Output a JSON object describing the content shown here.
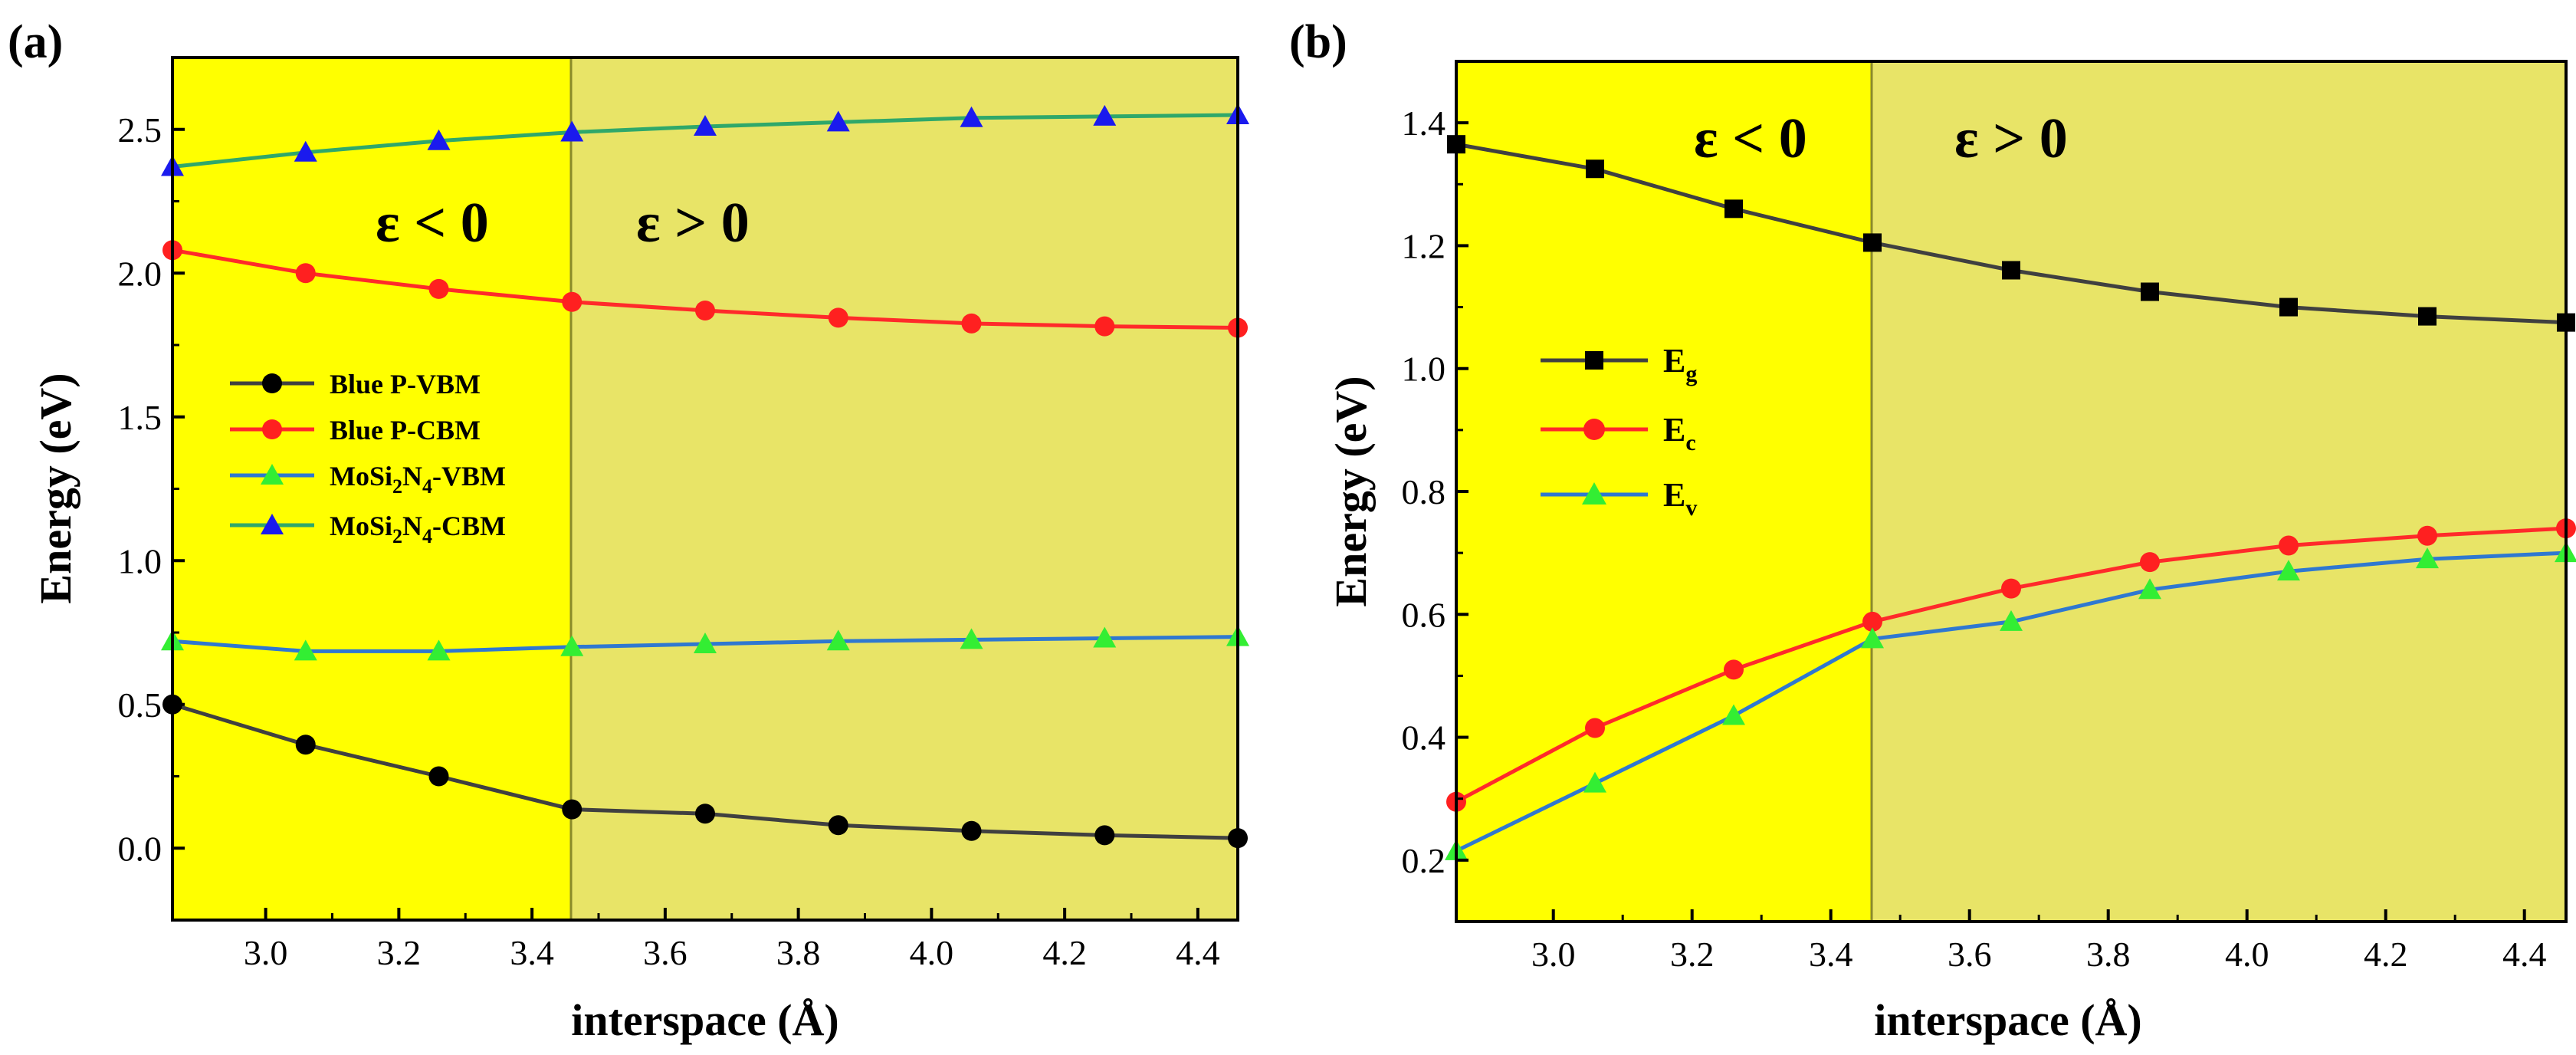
{
  "chart_data": [
    {
      "type": "line",
      "panel_label": "(a)",
      "xlabel": "interspace (Å)",
      "ylabel": "Energy (eV)",
      "xlim": [
        2.86,
        4.46
      ],
      "ylim": [
        -0.25,
        2.75
      ],
      "xticks": [
        3.0,
        3.2,
        3.4,
        3.6,
        3.8,
        4.0,
        4.2,
        4.4
      ],
      "xtick_labels": [
        "3.0",
        "3.2",
        "3.4",
        "3.6",
        "3.8",
        "4.0",
        "4.2",
        "4.4"
      ],
      "yticks": [
        0.0,
        0.5,
        1.0,
        1.5,
        2.0,
        2.5
      ],
      "ytick_labels": [
        "0.0",
        "0.5",
        "1.0",
        "1.5",
        "2.0",
        "2.5"
      ],
      "divider_x": 3.46,
      "region_left": {
        "label": "ε < 0",
        "color": "#ffff00"
      },
      "region_right": {
        "label": "ε > 0",
        "color": "#e8e467"
      },
      "x": [
        2.86,
        3.06,
        3.26,
        3.46,
        3.66,
        3.86,
        4.06,
        4.26,
        4.46
      ],
      "series": [
        {
          "name": "Blue P-VBM",
          "label_main": "Blue P-VBM",
          "label_sub": "",
          "label_tail": "",
          "label_sub2": "",
          "label_tail2": "",
          "line_color": "#404040",
          "marker": "circle",
          "marker_color": "#000000",
          "values": [
            0.5,
            0.36,
            0.25,
            0.135,
            0.12,
            0.08,
            0.06,
            0.045,
            0.035
          ]
        },
        {
          "name": "Blue P-CBM",
          "label_main": "Blue P-CBM",
          "label_sub": "",
          "label_tail": "",
          "label_sub2": "",
          "label_tail2": "",
          "line_color": "#ff2a2a",
          "marker": "circle",
          "marker_color": "#ff2020",
          "values": [
            2.08,
            2.0,
            1.945,
            1.9,
            1.87,
            1.845,
            1.825,
            1.815,
            1.81
          ]
        },
        {
          "name": "MoSi2N4-VBM",
          "label_main": "MoSi",
          "label_sub": "2",
          "label_tail": "N",
          "label_sub2": "4",
          "label_tail2": "-VBM",
          "line_color": "#2f78d0",
          "marker": "triangle",
          "marker_color": "#33ee33",
          "values": [
            0.72,
            0.685,
            0.685,
            0.7,
            0.71,
            0.72,
            0.725,
            0.73,
            0.735
          ]
        },
        {
          "name": "MoSi2N4-CBM",
          "label_main": "MoSi",
          "label_sub": "2",
          "label_tail": "N",
          "label_sub2": "4",
          "label_tail2": "-CBM",
          "line_color": "#2fa86a",
          "marker": "triangle",
          "marker_color": "#1a1aee",
          "values": [
            2.37,
            2.42,
            2.46,
            2.49,
            2.51,
            2.525,
            2.54,
            2.545,
            2.55
          ]
        }
      ]
    },
    {
      "type": "line",
      "panel_label": "(b)",
      "xlabel": "interspace (Å)",
      "ylabel": "Energy (eV)",
      "xlim": [
        2.86,
        4.46
      ],
      "ylim": [
        0.1,
        1.5
      ],
      "xticks": [
        3.0,
        3.2,
        3.4,
        3.6,
        3.8,
        4.0,
        4.2,
        4.4
      ],
      "xtick_labels": [
        "3.0",
        "3.2",
        "3.4",
        "3.6",
        "3.8",
        "4.0",
        "4.2",
        "4.4"
      ],
      "yticks": [
        0.2,
        0.4,
        0.6,
        0.8,
        1.0,
        1.2,
        1.4
      ],
      "ytick_labels": [
        "0.2",
        "0.4",
        "0.6",
        "0.8",
        "1.0",
        "1.2",
        "1.4"
      ],
      "divider_x": 3.46,
      "region_left": {
        "label": "ε < 0",
        "color": "#ffff00"
      },
      "region_right": {
        "label": "ε > 0",
        "color": "#e8e467"
      },
      "x": [
        2.86,
        3.06,
        3.26,
        3.46,
        3.66,
        3.86,
        4.06,
        4.26,
        4.46
      ],
      "series": [
        {
          "name": "Eg",
          "label_main": "E",
          "label_sub": "g",
          "label_tail": "",
          "label_sub2": "",
          "label_tail2": "",
          "line_color": "#404040",
          "marker": "square",
          "marker_color": "#000000",
          "values": [
            1.365,
            1.325,
            1.26,
            1.205,
            1.16,
            1.125,
            1.1,
            1.085,
            1.075
          ]
        },
        {
          "name": "Ec",
          "label_main": "E",
          "label_sub": "c",
          "label_tail": "",
          "label_sub2": "",
          "label_tail2": "",
          "line_color": "#ff2a2a",
          "marker": "circle",
          "marker_color": "#ff2020",
          "values": [
            0.295,
            0.415,
            0.51,
            0.588,
            0.642,
            0.685,
            0.712,
            0.728,
            0.74
          ]
        },
        {
          "name": "Ev",
          "label_main": "E",
          "label_sub": "v",
          "label_tail": "",
          "label_sub2": "",
          "label_tail2": "",
          "line_color": "#2f78d0",
          "marker": "triangle",
          "marker_color": "#33ee33",
          "values": [
            0.215,
            0.325,
            0.435,
            0.56,
            0.588,
            0.64,
            0.67,
            0.69,
            0.7
          ]
        }
      ]
    }
  ]
}
